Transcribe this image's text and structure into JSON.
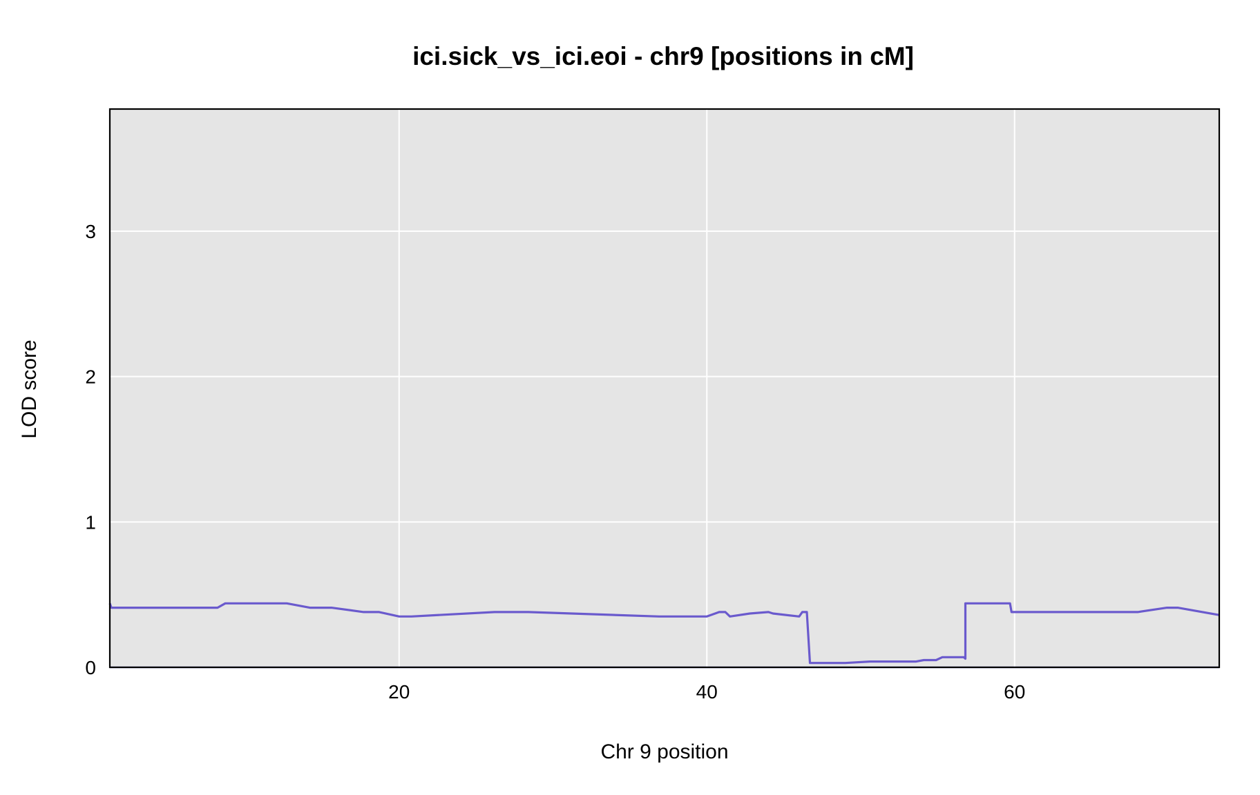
{
  "chart_data": {
    "type": "line",
    "title": "ici.sick_vs_ici.eoi - chr9 [positions in cM]",
    "xlabel": "Chr 9 position",
    "ylabel": "LOD score",
    "xlim": [
      1.2,
      73.3
    ],
    "ylim": [
      0,
      3.84
    ],
    "xticks": [
      20,
      40,
      60
    ],
    "yticks": [
      0,
      1,
      2,
      3
    ],
    "xtick_labels": [
      "20",
      "40",
      "60"
    ],
    "ytick_labels": [
      "0",
      "1",
      "2",
      "3"
    ],
    "grid": true,
    "legend": "none",
    "colors": {
      "line": "#6a5acd",
      "panel": "#e5e5e5",
      "grid": "#ffffff",
      "frame": "#000000",
      "baseline": "#00008b"
    },
    "series": [
      {
        "x": [
          1.2,
          1.3,
          8.2,
          8.7,
          12.7,
          14.2,
          15.6,
          17.7,
          18.7,
          20.0,
          20.8,
          26.2,
          28.4,
          36.9,
          40.0,
          40.8,
          41.2,
          41.5,
          42.8,
          44.0,
          44.3,
          46.0,
          46.2,
          46.5,
          46.7,
          49.0,
          50.6,
          53.6,
          54.1,
          54.9,
          55.3,
          56.7,
          56.8,
          56.8,
          59.7,
          59.8,
          65.7,
          65.9,
          66.9,
          67.3,
          68.0,
          69.9,
          70.6,
          73.3
        ],
        "y": [
          0.44,
          0.41,
          0.41,
          0.44,
          0.44,
          0.41,
          0.41,
          0.38,
          0.38,
          0.35,
          0.35,
          0.38,
          0.38,
          0.35,
          0.35,
          0.38,
          0.38,
          0.35,
          0.37,
          0.38,
          0.37,
          0.35,
          0.38,
          0.38,
          0.03,
          0.03,
          0.04,
          0.04,
          0.05,
          0.05,
          0.07,
          0.07,
          0.06,
          0.44,
          0.44,
          0.38,
          0.38,
          0.38,
          0.38,
          0.38,
          0.38,
          0.41,
          0.41,
          0.36
        ]
      }
    ]
  }
}
